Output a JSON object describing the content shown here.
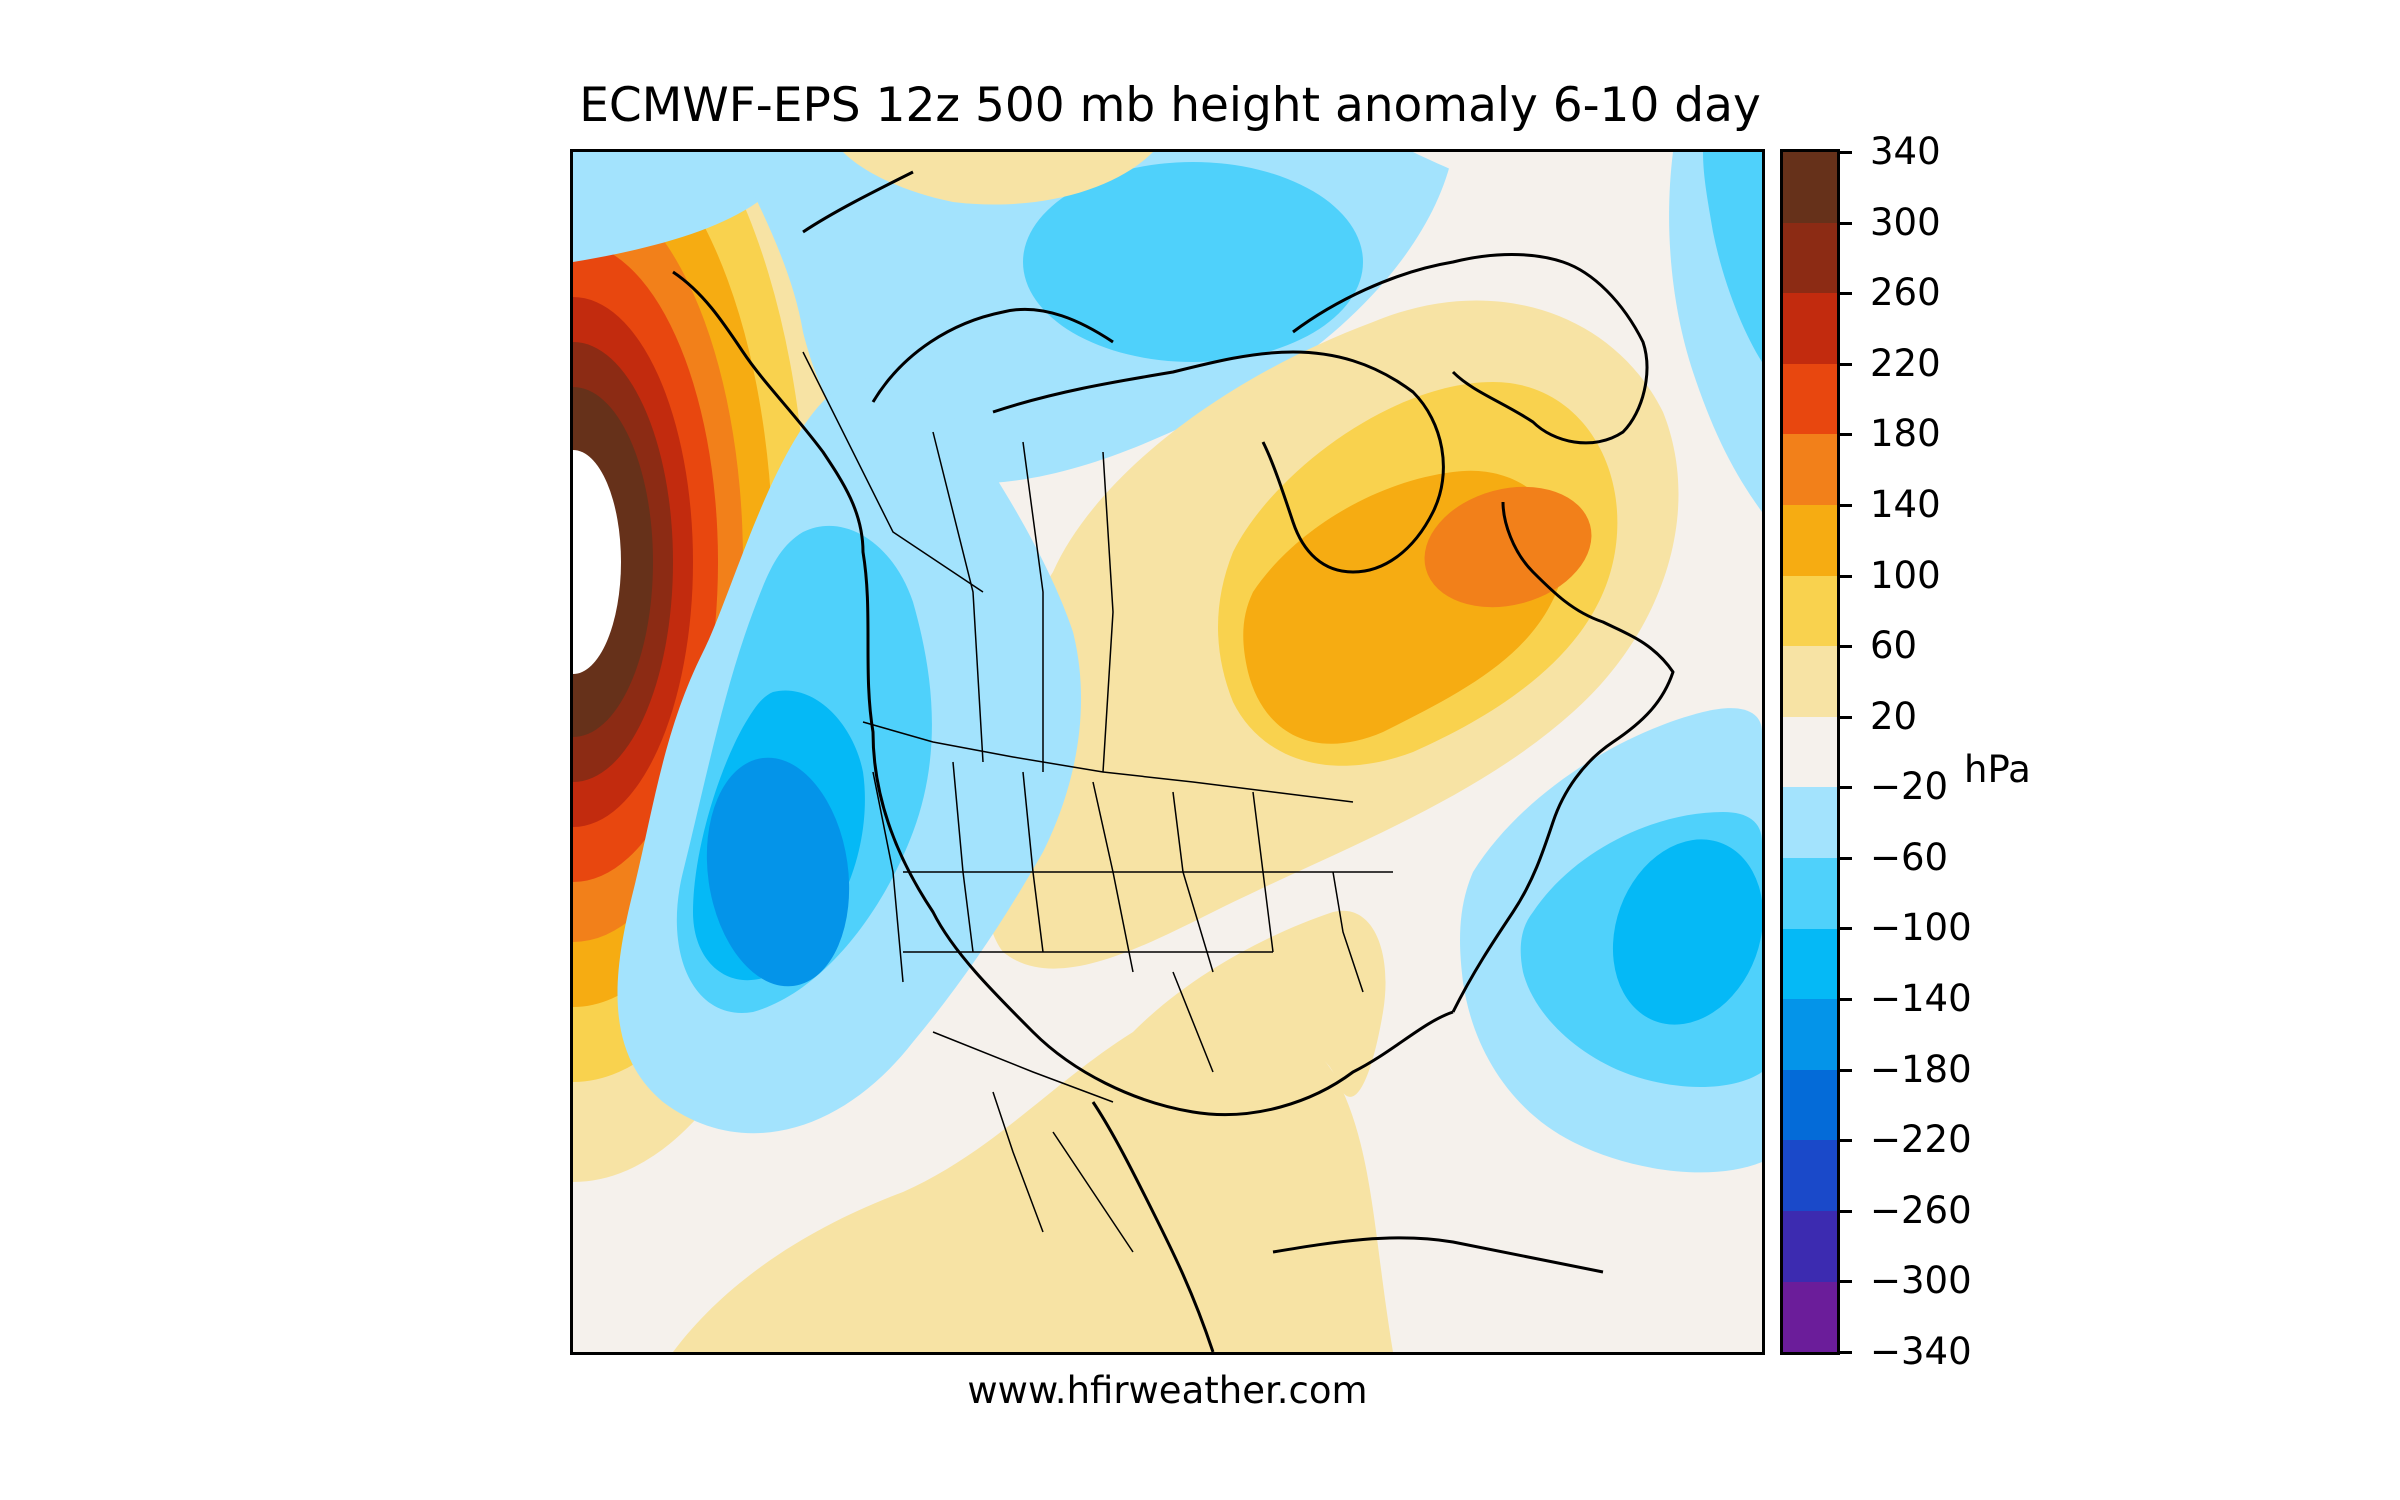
{
  "title": "ECMWF-EPS 12z 500 mb height anomaly 6-10 day",
  "credit": "www.hfirweather.com",
  "colorbar": {
    "unit": "hPa",
    "ticks": [
      "340",
      "300",
      "260",
      "220",
      "180",
      "140",
      "100",
      "60",
      "20",
      "−20",
      "−60",
      "−100",
      "−140",
      "−180",
      "−220",
      "−260",
      "−300",
      "−340"
    ],
    "colors": [
      "#66311a",
      "#8c2b14",
      "#c22b0e",
      "#e8470f",
      "#f2801a",
      "#f6ac12",
      "#f9d24e",
      "#f7e3a4",
      "#f5f1ec",
      "#a3e3fd",
      "#4fd1fb",
      "#05b9f6",
      "#0494e9",
      "#046bd8",
      "#1a49c9",
      "#3c2bb0",
      "#6b1d9a"
    ]
  },
  "map": {
    "region": "North America",
    "features": [
      {
        "label": "positive-anomaly-alaska",
        "level": 340
      },
      {
        "label": "positive-anomaly-hudson-bay-labrador",
        "level": 140
      },
      {
        "label": "negative-anomaly-us-west-coast",
        "level": -180
      },
      {
        "label": "negative-anomaly-western-atlantic",
        "level": -140
      },
      {
        "label": "negative-anomaly-canadian-arctic",
        "level": -60
      }
    ]
  }
}
